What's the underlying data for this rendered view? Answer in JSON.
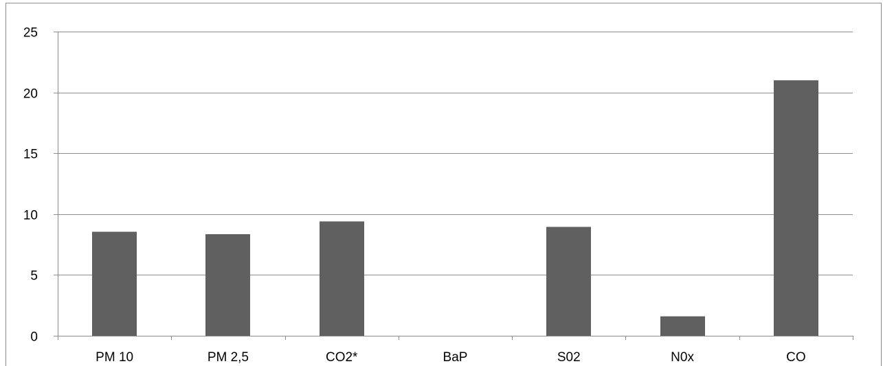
{
  "caption": "",
  "colors": {
    "bar": "#606060",
    "grid": "#8c8c8c",
    "text": "#000000",
    "frame": "#8c8c8c",
    "background": "#ffffff"
  },
  "chart_data": {
    "type": "bar",
    "title": "",
    "xlabel": "",
    "ylabel": "",
    "categories": [
      "PM 10",
      "PM 2,5",
      "CO2*",
      "BaP",
      "S02",
      "N0x",
      "CO"
    ],
    "values": [
      8.55,
      8.35,
      9.4,
      0,
      8.95,
      1.6,
      21.0
    ],
    "ylim": [
      0,
      25
    ],
    "yticks": [
      0,
      5,
      10,
      15,
      20,
      25
    ],
    "ytick_labels": [
      "0",
      "5",
      "10",
      "15",
      "20",
      "25"
    ],
    "grid": true,
    "legend": "none"
  }
}
